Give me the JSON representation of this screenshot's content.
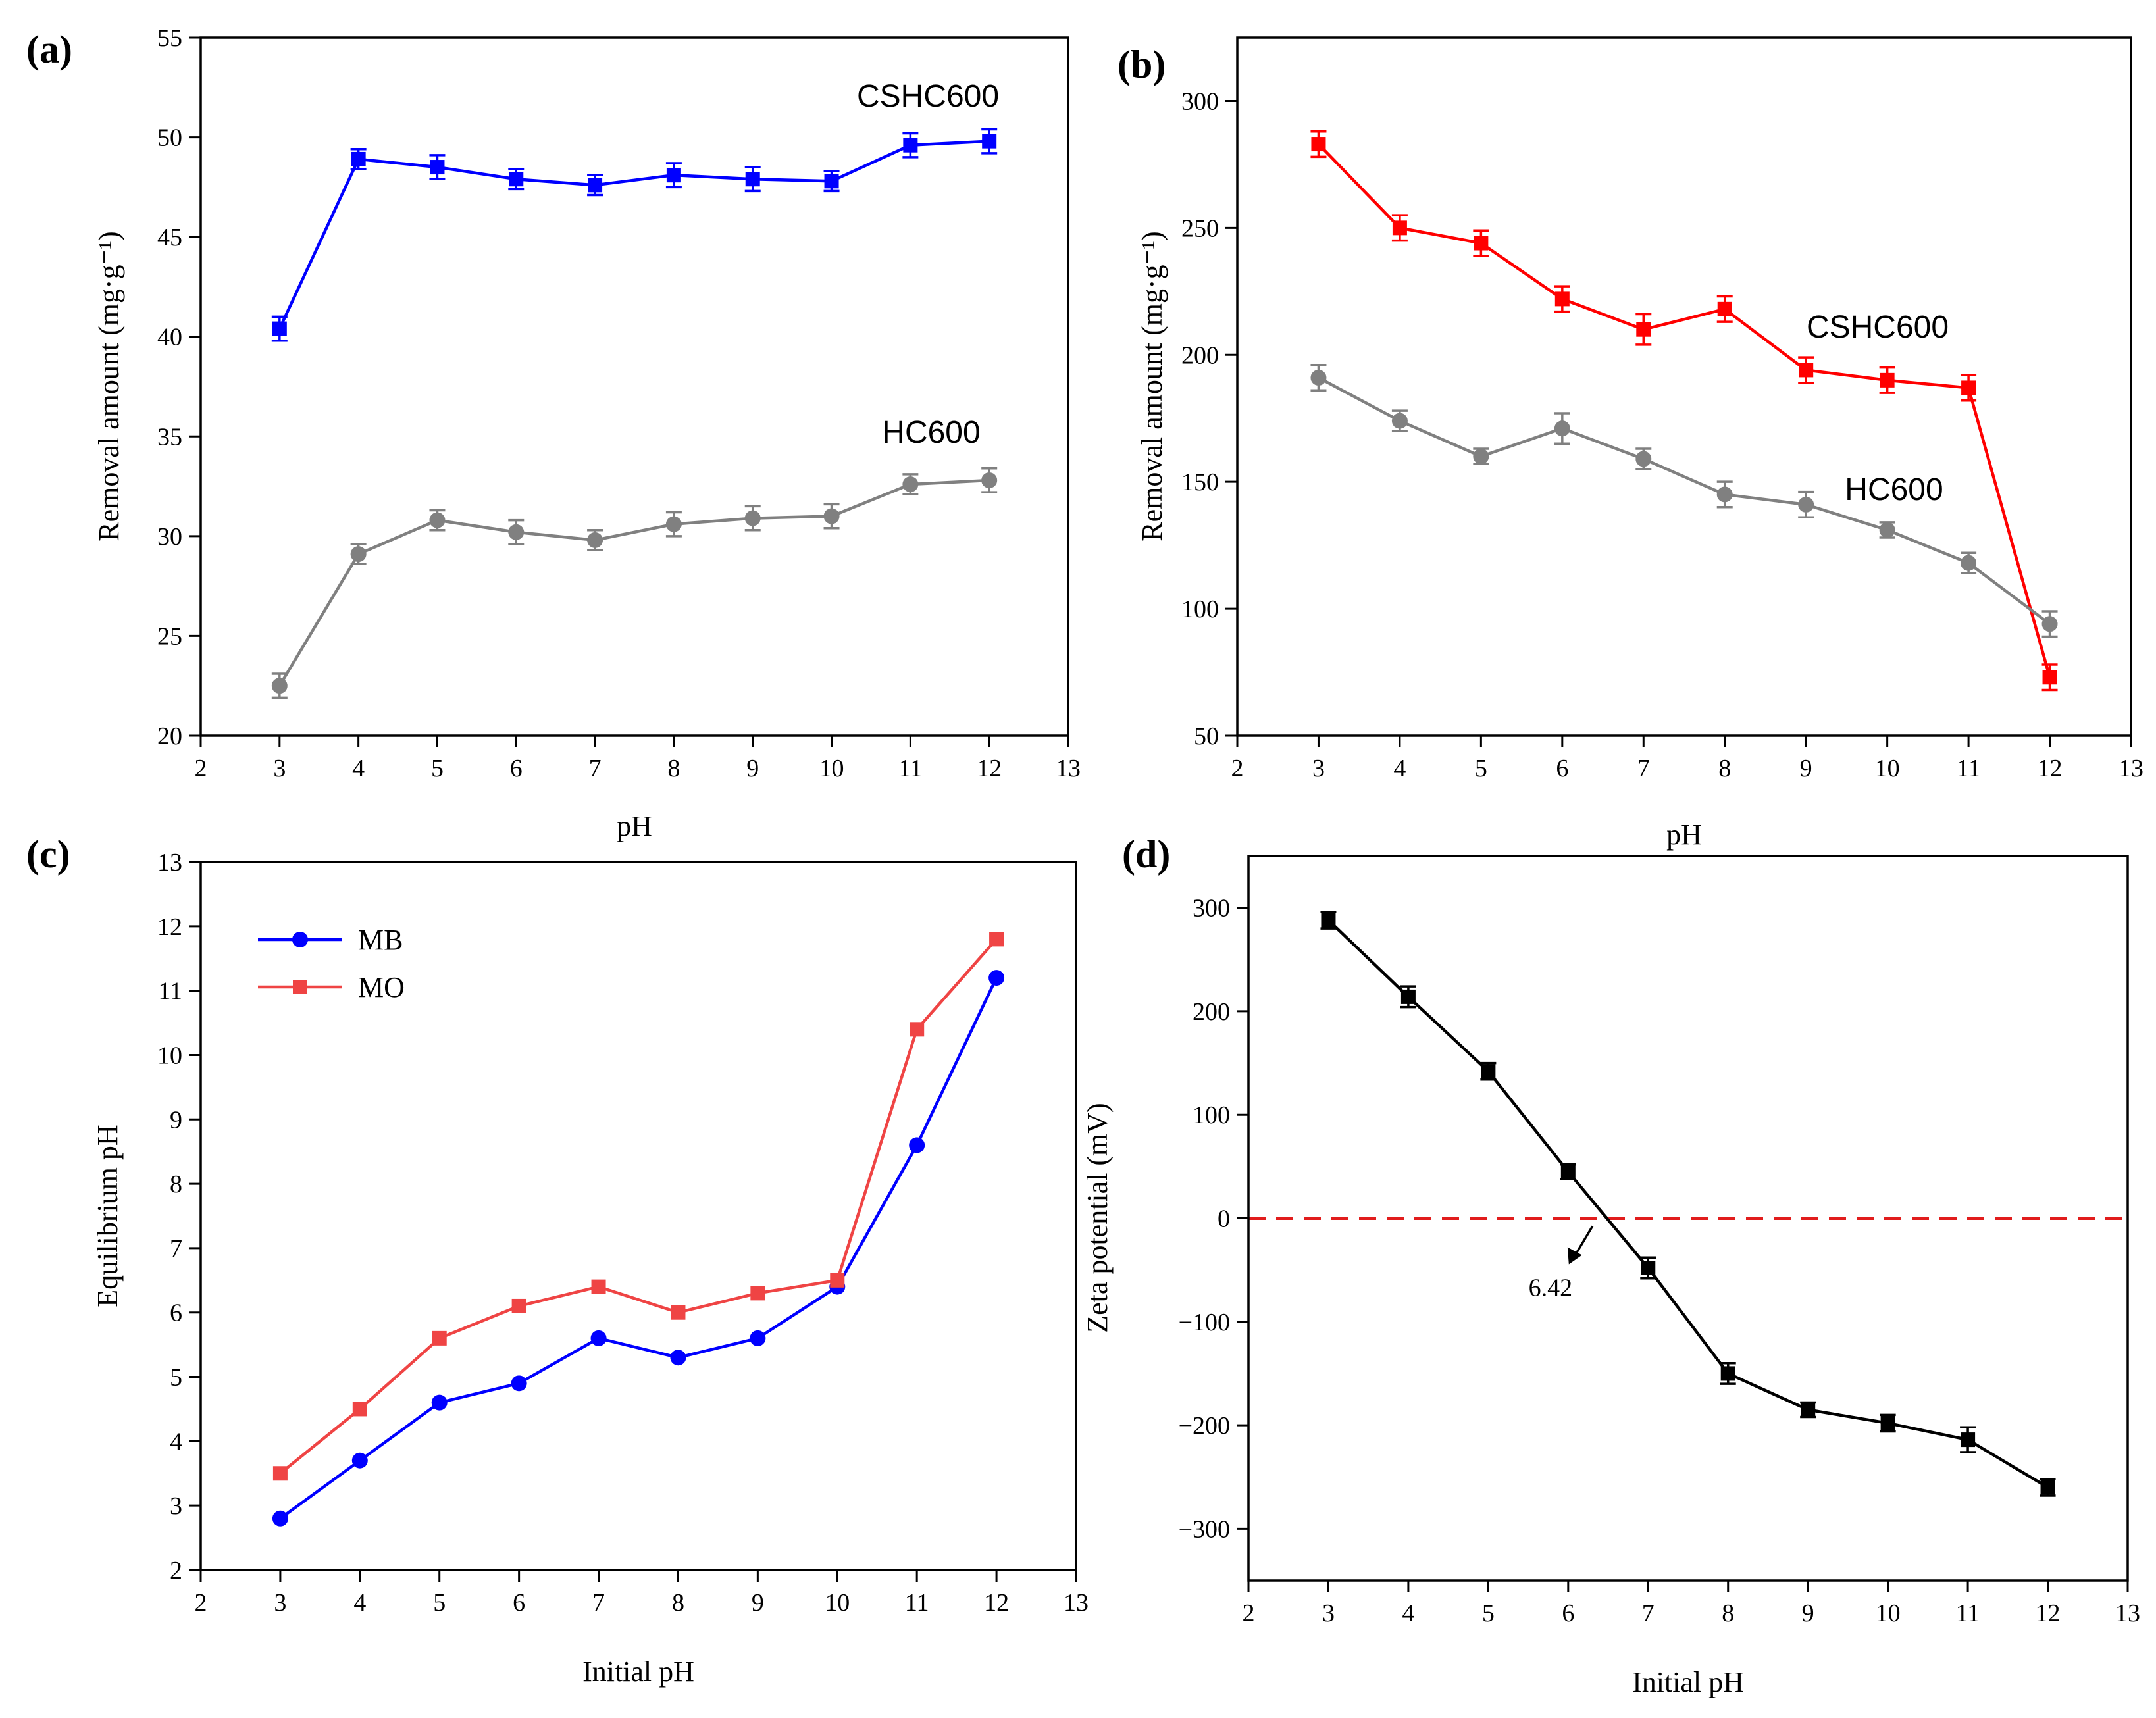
{
  "chart_data": [
    {
      "panel_label": "(a)",
      "type": "line",
      "xlabel": "pH",
      "ylabel": "Removal amount (mg·g⁻¹)",
      "xlim": [
        2,
        13
      ],
      "ylim": [
        20,
        55
      ],
      "xticks": [
        2,
        3,
        4,
        5,
        6,
        7,
        8,
        9,
        10,
        11,
        12,
        13
      ],
      "yticks": [
        20,
        25,
        30,
        35,
        40,
        45,
        50,
        55
      ],
      "x": [
        3,
        4,
        5,
        6,
        7,
        8,
        9,
        10,
        11,
        12
      ],
      "series": [
        {
          "name": "CSHC600",
          "color": "#0000ff",
          "marker": "square",
          "values": [
            40.4,
            48.9,
            48.5,
            47.9,
            47.6,
            48.1,
            47.9,
            47.8,
            49.6,
            49.8
          ],
          "errors": [
            0.6,
            0.5,
            0.6,
            0.5,
            0.5,
            0.6,
            0.6,
            0.5,
            0.6,
            0.6
          ]
        },
        {
          "name": "HC600",
          "color": "#808080",
          "marker": "circle",
          "values": [
            22.5,
            29.1,
            30.8,
            30.2,
            29.8,
            30.6,
            30.9,
            31.0,
            32.6,
            32.8
          ],
          "errors": [
            0.6,
            0.5,
            0.5,
            0.6,
            0.5,
            0.6,
            0.6,
            0.6,
            0.5,
            0.6
          ]
        }
      ]
    },
    {
      "panel_label": "(b)",
      "type": "line",
      "xlabel": "pH",
      "ylabel": "Removal amount (mg·g⁻¹)",
      "xlim": [
        2,
        13
      ],
      "ylim": [
        50,
        325
      ],
      "xticks": [
        2,
        3,
        4,
        5,
        6,
        7,
        8,
        9,
        10,
        11,
        12,
        13
      ],
      "yticks": [
        50,
        100,
        150,
        200,
        250,
        300
      ],
      "x": [
        3,
        4,
        5,
        6,
        7,
        8,
        9,
        10,
        11,
        12
      ],
      "series": [
        {
          "name": "CSHC600",
          "color": "#ff0000",
          "marker": "square",
          "values": [
            283,
            250,
            244,
            222,
            210,
            218,
            194,
            190,
            187,
            73
          ],
          "errors": [
            5,
            5,
            5,
            5,
            6,
            5,
            5,
            5,
            5,
            5
          ]
        },
        {
          "name": "HC600",
          "color": "#808080",
          "marker": "circle",
          "values": [
            191,
            174,
            160,
            171,
            159,
            145,
            141,
            131,
            118,
            94
          ],
          "errors": [
            5,
            4,
            3,
            6,
            4,
            5,
            5,
            3,
            4,
            5
          ]
        }
      ]
    },
    {
      "panel_label": "(c)",
      "type": "line",
      "xlabel": "Initial pH",
      "ylabel": "Equilibrium pH",
      "xlim": [
        2,
        13
      ],
      "ylim": [
        2,
        13
      ],
      "xticks": [
        2,
        3,
        4,
        5,
        6,
        7,
        8,
        9,
        10,
        11,
        12,
        13
      ],
      "yticks": [
        2,
        3,
        4,
        5,
        6,
        7,
        8,
        9,
        10,
        11,
        12,
        13
      ],
      "x": [
        3,
        4,
        5,
        6,
        7,
        8,
        9,
        10,
        11,
        12
      ],
      "legend": "top-left",
      "series": [
        {
          "name": "MB",
          "color": "#0000ff",
          "marker": "circle",
          "values": [
            2.8,
            3.7,
            4.6,
            4.9,
            5.6,
            5.3,
            5.6,
            6.4,
            8.6,
            11.2
          ]
        },
        {
          "name": "MO",
          "color": "#ef4444",
          "marker": "square",
          "values": [
            3.5,
            4.5,
            5.6,
            6.1,
            6.4,
            6.0,
            6.3,
            6.5,
            10.4,
            11.8
          ]
        }
      ]
    },
    {
      "panel_label": "(d)",
      "type": "line",
      "xlabel": "Initial pH",
      "ylabel": "Zeta potential (mV)",
      "xlim": [
        2,
        13
      ],
      "ylim": [
        -350,
        350
      ],
      "xticks": [
        2,
        3,
        4,
        5,
        6,
        7,
        8,
        9,
        10,
        11,
        12,
        13
      ],
      "yticks": [
        -300,
        -200,
        -100,
        0,
        100,
        200,
        300
      ],
      "x": [
        3,
        4,
        5,
        6,
        7,
        8,
        9,
        10,
        11,
        12
      ],
      "series": [
        {
          "name": "Zeta potential",
          "color": "#000000",
          "marker": "square",
          "values": [
            288,
            214,
            142,
            45,
            -48,
            -150,
            -185,
            -198,
            -214,
            -260
          ],
          "errors": [
            8,
            10,
            8,
            7,
            10,
            10,
            7,
            8,
            12,
            8
          ]
        }
      ],
      "reference_line": {
        "y": 0,
        "color": "#e11d1d",
        "style": "dashed"
      },
      "annotation": {
        "text": "6.42",
        "x": 6.42,
        "y": 0
      }
    }
  ]
}
